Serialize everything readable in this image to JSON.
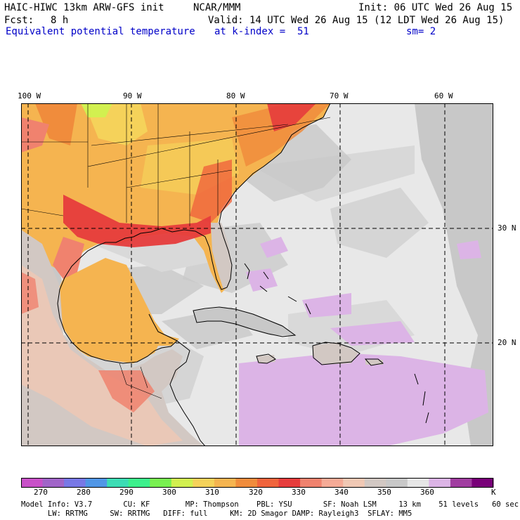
{
  "header": {
    "model": "HAIC-HIWC 13km ARW-GFS init",
    "org": "NCAR/MMM",
    "init": "Init: 06 UTC Wed 26 Aug 15",
    "fcst_label": "Fcst:",
    "fcst_value": "8 h",
    "valid": "Valid: 14 UTC Wed 26 Aug 15 (12 LDT Wed 26 Aug 15)",
    "field": "Equivalent potential temperature",
    "level": "at k-index =  51",
    "smooth": "sm= 2"
  },
  "map": {
    "lon_labels": [
      "100 W",
      "90 W",
      "80 W",
      "70 W",
      "60 W"
    ],
    "lat_labels": [
      "30 N",
      "20 N"
    ]
  },
  "colorbar": {
    "ticks": [
      "270",
      "280",
      "290",
      "300",
      "310",
      "320",
      "330",
      "340",
      "350",
      "360"
    ],
    "unit": "K",
    "colors": [
      "#c850c8",
      "#a064c8",
      "#7878e6",
      "#5096e6",
      "#3cdcb4",
      "#3cf08c",
      "#78f050",
      "#d2f050",
      "#f5d25a",
      "#f5b450",
      "#f08c3c",
      "#f0643c",
      "#e63c3c",
      "#f0826e",
      "#f5aa96",
      "#f0c8b4",
      "#d2c8c3",
      "#c8c8c8",
      "#e6e6e6",
      "#dcb4e6",
      "#a03ca0",
      "#780078"
    ]
  },
  "model_info": {
    "line1": "Model Info: V3.7       CU: KF        MP: Thompson    PBL: YSU       SF: Noah LSM     13 km    51 levels   60 sec",
    "line2": "      LW: RRTMG     SW: RRTMG   DIFF: full     KM: 2D Smagor DAMP: Rayleigh3  SFLAY: MM5"
  }
}
